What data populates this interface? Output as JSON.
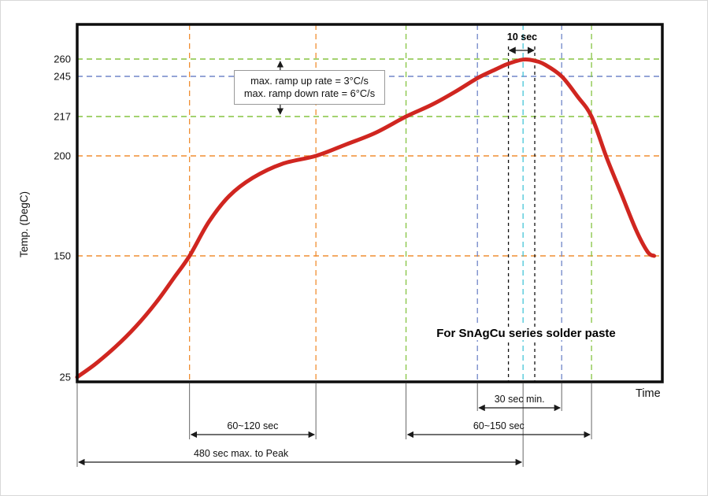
{
  "chart_data": {
    "type": "line",
    "title": "",
    "xlabel": "Time",
    "ylabel": "Temp. (DegC)",
    "note": "For SnAgCu series solder paste",
    "y_ticks": [
      25,
      150,
      200,
      217,
      245,
      260
    ],
    "x_axis_tick_labels": [],
    "series": [
      {
        "name": "reflow-temperature-profile",
        "color": "#d02620",
        "points": [
          [
            0.0,
            25
          ],
          [
            0.03,
            38
          ],
          [
            0.065,
            56
          ],
          [
            0.1,
            77
          ],
          [
            0.135,
            102
          ],
          [
            0.165,
            127
          ],
          [
            0.192,
            150
          ],
          [
            0.225,
            167
          ],
          [
            0.26,
            180
          ],
          [
            0.3,
            189
          ],
          [
            0.35,
            196
          ],
          [
            0.408,
            200
          ],
          [
            0.46,
            205
          ],
          [
            0.51,
            210
          ],
          [
            0.562,
            217
          ],
          [
            0.605,
            225
          ],
          [
            0.645,
            234
          ],
          [
            0.685,
            244
          ],
          [
            0.715,
            251
          ],
          [
            0.737,
            256
          ],
          [
            0.762,
            259.5
          ],
          [
            0.782,
            258.5
          ],
          [
            0.8,
            255
          ],
          [
            0.828,
            245
          ],
          [
            0.855,
            231
          ],
          [
            0.879,
            217
          ],
          [
            0.905,
            199
          ],
          [
            0.93,
            181
          ],
          [
            0.955,
            163
          ],
          [
            0.975,
            152
          ],
          [
            0.986,
            150
          ]
        ]
      }
    ],
    "h_gridlines": [
      {
        "temp": 260,
        "color": "#85c441"
      },
      {
        "temp": 245,
        "color": "#7086c8"
      },
      {
        "temp": 217,
        "color": "#85c441"
      },
      {
        "temp": 200,
        "color": "#f08e32"
      },
      {
        "temp": 150,
        "color": "#f08e32"
      }
    ],
    "v_gridlines": [
      {
        "x": 0.192,
        "color": "#f08e32"
      },
      {
        "x": 0.408,
        "color": "#f08e32"
      },
      {
        "x": 0.562,
        "color": "#85c441"
      },
      {
        "x": 0.684,
        "color": "#7086c8"
      },
      {
        "x": 0.737,
        "color": "#111111",
        "dash": "4 4",
        "top": 58
      },
      {
        "x": 0.762,
        "color": "#45c5d8"
      },
      {
        "x": 0.782,
        "color": "#111111",
        "dash": "4 4",
        "top": 58
      },
      {
        "x": 0.828,
        "color": "#7086c8"
      },
      {
        "x": 0.879,
        "color": "#85c441"
      }
    ],
    "measurements": [
      {
        "label": "30 sec min.",
        "from": 0.684,
        "to": 0.828,
        "row": 1
      },
      {
        "label": "60~120 sec",
        "from": 0.192,
        "to": 0.408,
        "row": 2
      },
      {
        "label": "60~150 sec",
        "from": 0.562,
        "to": 0.879,
        "row": 2
      },
      {
        "label": "480 sec max. to Peak",
        "from": 0.0,
        "to": 0.762,
        "row": 3,
        "label_x": 0.28
      }
    ],
    "extension_lines": [
      {
        "x": 0.0,
        "row": 3
      },
      {
        "x": 0.192,
        "row": 2
      },
      {
        "x": 0.408,
        "row": 2
      },
      {
        "x": 0.562,
        "row": 2
      },
      {
        "x": 0.684,
        "row": 1
      },
      {
        "x": 0.762,
        "row": 3
      },
      {
        "x": 0.828,
        "row": 1
      },
      {
        "x": 0.879,
        "row": 2
      }
    ],
    "peak_annotation": {
      "label": "10 sec",
      "from": 0.737,
      "to": 0.782
    },
    "ramp_note": {
      "line1": "max. ramp up rate = 3°C/s",
      "line2": "max. ramp down rate = 6°C/s",
      "arrow_x": 0.347,
      "top_temp": 260,
      "bottom_temp": 217
    }
  }
}
